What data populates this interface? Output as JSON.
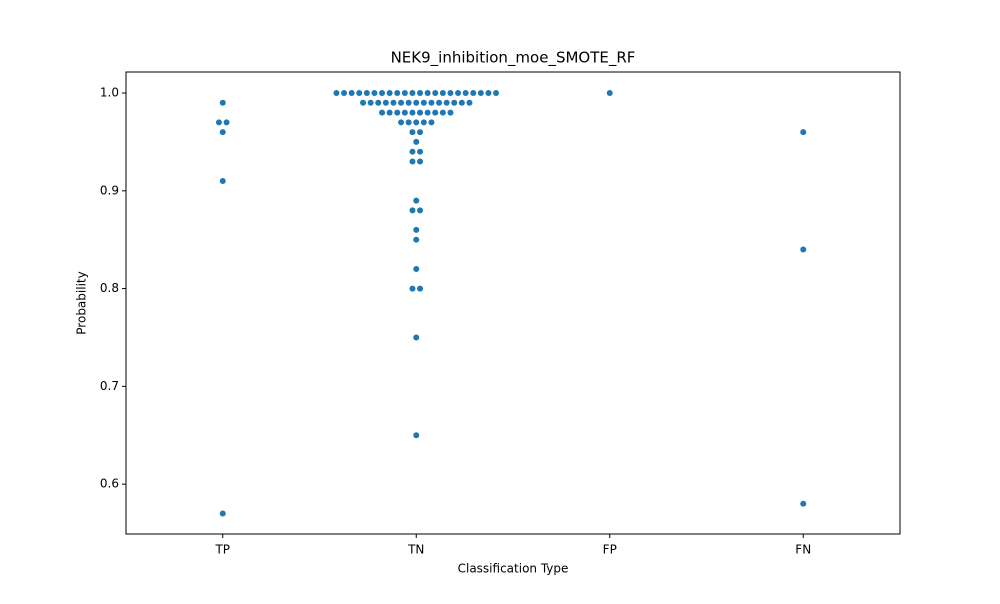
{
  "chart_data": {
    "type": "swarm",
    "title": "NEK9_inhibition_moe_SMOTE_RF",
    "x_label": "Classification Type",
    "y_label": "Probability",
    "categories": [
      "TP",
      "TN",
      "FP",
      "FN"
    ],
    "values": [
      [
        0.99,
        0.97,
        0.97,
        0.96,
        0.91,
        0.57
      ],
      [
        1,
        1,
        1,
        1,
        1,
        1,
        1,
        1,
        1,
        1,
        1,
        1,
        1,
        1,
        1,
        1,
        1,
        1,
        1,
        1,
        1,
        1,
        0.99,
        0.99,
        0.99,
        0.99,
        0.99,
        0.99,
        0.99,
        0.99,
        0.99,
        0.99,
        0.99,
        0.99,
        0.99,
        0.99,
        0.99,
        0.98,
        0.98,
        0.98,
        0.98,
        0.98,
        0.98,
        0.98,
        0.98,
        0.98,
        0.98,
        0.97,
        0.97,
        0.97,
        0.97,
        0.97,
        0.96,
        0.96,
        0.95,
        0.94,
        0.94,
        0.93,
        0.93,
        0.89,
        0.88,
        0.88,
        0.86,
        0.85,
        0.82,
        0.8,
        0.8,
        0.75,
        0.65
      ],
      [
        1
      ],
      [
        0.96,
        0.84,
        0.58
      ]
    ],
    "color": "#1f77b4",
    "ylim": [
      0.549,
      1.0215
    ],
    "yticks": [
      0.6,
      0.7,
      0.8,
      0.9,
      {
        "value": 1,
        "label": "1.0"
      }
    ]
  }
}
